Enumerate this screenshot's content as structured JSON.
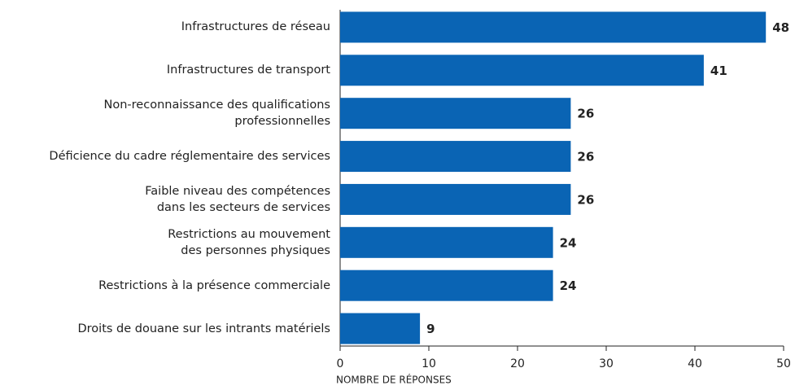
{
  "chart_data": {
    "type": "bar",
    "orientation": "horizontal",
    "categories": [
      "Infrastructures de réseau",
      "Infrastructures de transport",
      "Non-reconnaissance des qualifications\nprofessionnelles",
      "Déficience du cadre réglementaire des services",
      "Faible niveau des compétences\ndans les secteurs de services",
      "Restrictions au mouvement\ndes personnes physiques",
      "Restrictions à la présence commerciale",
      "Droits de douane sur les intrants matériels"
    ],
    "values": [
      48,
      41,
      26,
      26,
      26,
      24,
      24,
      9
    ],
    "color": "#0a64b4",
    "xlabel": "NOMBRE DE RÉPONSES",
    "xlim": [
      0,
      50
    ],
    "xticks": [
      0,
      10,
      20,
      30,
      40,
      50
    ]
  }
}
